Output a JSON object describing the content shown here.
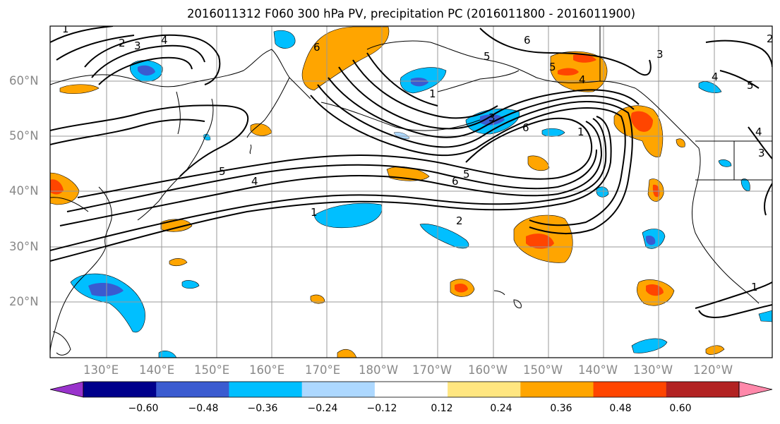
{
  "title": "2016011312 F060 300 hPa PV, precipitation PC (2016011800 - 2016011900)",
  "lat_labels": [
    "60°N",
    "50°N",
    "40°N",
    "30°N",
    "20°N"
  ],
  "lon_labels": [
    "130°E",
    "140°E",
    "150°E",
    "160°E",
    "170°E",
    "180°W",
    "170°W",
    "160°W",
    "150°W",
    "140°W",
    "130°W",
    "120°W"
  ],
  "colorbar": {
    "ticks": [
      "−0.60",
      "−0.48",
      "−0.36",
      "−0.24",
      "−0.12",
      "0.12",
      "0.24",
      "0.36",
      "0.48",
      "0.60"
    ],
    "colors": [
      "#9933cc",
      "#00008b",
      "#3a5bd0",
      "#00bfff",
      "#add8ff",
      "#ffffff",
      "#ffe680",
      "#ffa500",
      "#ff4500",
      "#b22222",
      "#ff88aa"
    ]
  },
  "contour_labels": [
    "1",
    "2",
    "3",
    "4",
    "5",
    "6",
    "6",
    "5",
    "4",
    "3",
    "1",
    "6",
    "5",
    "4",
    "5",
    "4",
    "1",
    "2",
    "3",
    "6",
    "5",
    "4",
    "3",
    "2",
    "1",
    "1"
  ]
}
